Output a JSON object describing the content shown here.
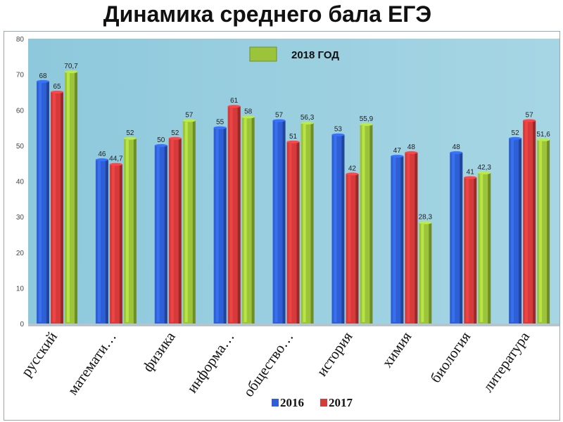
{
  "page": {
    "title": "Динамика среднего бала ЕГЭ"
  },
  "chart_data": {
    "type": "bar",
    "categories": [
      "русский",
      "математи…",
      "физика",
      "информа…",
      "общество…",
      "история",
      "химия",
      "биология",
      "литература"
    ],
    "series": [
      {
        "name": "2016",
        "color": "#2f5fd6",
        "values": [
          68,
          46,
          50,
          55,
          57,
          53,
          47,
          48,
          52
        ],
        "labels": [
          "68",
          "46",
          "50",
          "55",
          "57",
          "53",
          "47",
          "48",
          "52"
        ]
      },
      {
        "name": "2017",
        "color": "#d63a3a",
        "values": [
          65,
          44.7,
          52,
          61,
          51,
          42,
          48,
          41,
          57
        ],
        "labels": [
          "65",
          "44,7",
          "52",
          "61",
          "51",
          "42",
          "48",
          "41",
          "57"
        ]
      },
      {
        "name": "2018 ГОД",
        "color": "#9bc43a",
        "values": [
          70.7,
          52,
          57,
          58,
          56.3,
          55.9,
          28.3,
          42.3,
          51.6
        ],
        "labels": [
          "70,7",
          "52",
          "57",
          "58",
          "56,3",
          "55,9",
          "28,3",
          "42,3",
          "51,6"
        ]
      }
    ],
    "ylim": [
      0,
      80
    ],
    "yticks": [
      0,
      10,
      20,
      30,
      40,
      50,
      60,
      70,
      80
    ],
    "grid": false,
    "plot_background": "#9fd0e0",
    "legend_top": "2018 ГОД",
    "legend_bottom": [
      "2016",
      "2017"
    ]
  }
}
